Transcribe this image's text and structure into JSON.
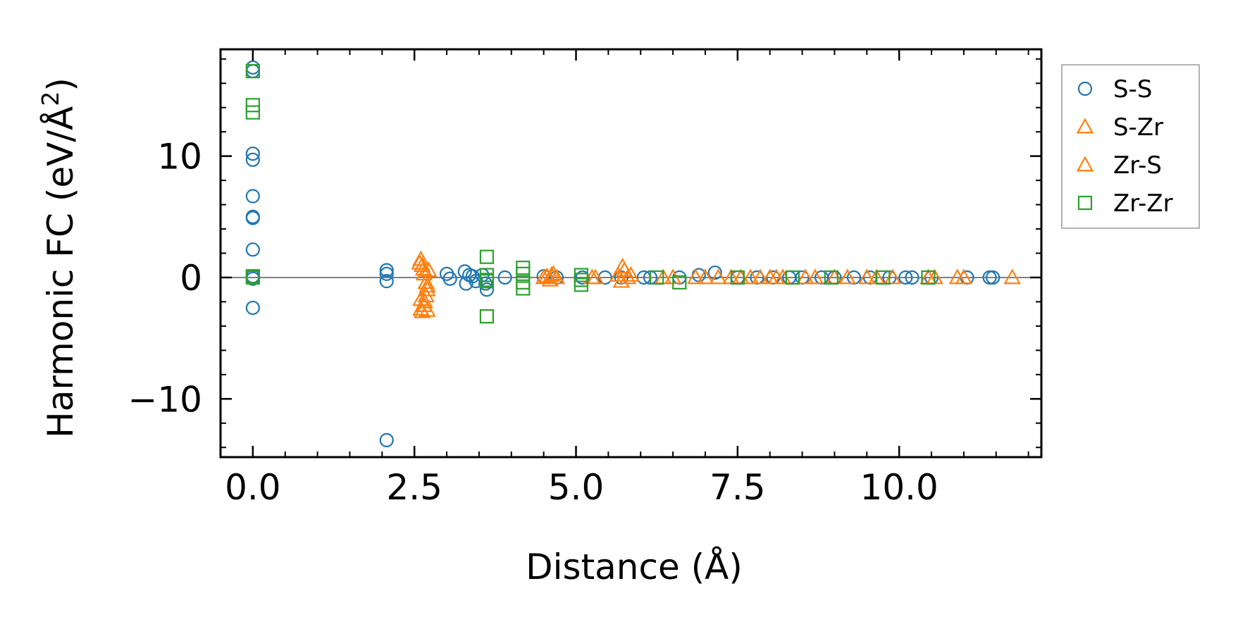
{
  "chart_data": {
    "type": "scatter",
    "title": "",
    "xlabel": "Distance (Å)",
    "ylabel_main": "Harmonic FC (eV/Å",
    "ylabel_sup": "2",
    "ylabel_close": ")",
    "xlim": [
      -0.5,
      12.2
    ],
    "ylim": [
      -14.8,
      18.8
    ],
    "xticks": [
      0.0,
      2.5,
      5.0,
      7.5,
      10.0
    ],
    "xtick_labels": [
      "0.0",
      "2.5",
      "5.0",
      "7.5",
      "10.0"
    ],
    "yticks": [
      -10,
      0,
      10
    ],
    "ytick_labels": [
      "−10",
      "0",
      "10"
    ],
    "zero_line": true,
    "legend_position": "outside-right-top",
    "series": [
      {
        "name": "S-S",
        "marker": "circle",
        "color": "#1f77b4",
        "x": [
          0.0,
          0.0,
          0.0,
          0.0,
          0.0,
          0.0,
          0.0,
          0.0,
          0.0,
          0.0,
          0.0,
          2.07,
          2.07,
          2.07,
          2.07,
          3.0,
          3.05,
          3.28,
          3.3,
          3.35,
          3.4,
          3.45,
          3.55,
          3.6,
          3.62,
          3.9,
          4.5,
          4.7,
          5.1,
          5.45,
          5.7,
          6.05,
          6.15,
          6.6,
          6.9,
          7.15,
          7.5,
          7.8,
          8.05,
          8.3,
          8.5,
          8.8,
          9.0,
          9.3,
          9.55,
          9.85,
          10.1,
          10.2,
          10.5,
          11.05,
          11.4,
          11.45
        ],
        "y": [
          17.3,
          17.0,
          10.2,
          9.7,
          6.7,
          5.0,
          4.9,
          2.3,
          0.1,
          -0.1,
          -2.5,
          0.6,
          0.3,
          -0.3,
          -13.4,
          0.3,
          -0.1,
          0.5,
          -0.5,
          0.2,
          0.1,
          -0.3,
          0.2,
          -0.5,
          -1.0,
          0.0,
          0.1,
          0.0,
          0.0,
          0.0,
          0.0,
          0.0,
          0.0,
          0.0,
          0.2,
          0.4,
          0.0,
          0.0,
          0.0,
          0.0,
          0.0,
          0.0,
          0.0,
          0.0,
          0.0,
          0.0,
          0.0,
          0.0,
          0.0,
          0.0,
          0.0,
          0.0
        ]
      },
      {
        "name": "S-Zr",
        "marker": "triangle",
        "color": "#ff7f0e",
        "x": [
          2.6,
          2.62,
          2.65,
          2.68,
          2.7,
          2.6,
          2.65,
          2.7,
          2.62,
          2.68,
          2.6,
          2.72,
          4.55,
          4.6,
          4.65,
          4.7,
          5.3,
          5.65,
          5.7,
          5.75,
          5.8,
          6.5,
          6.85,
          7.2,
          7.55,
          7.85,
          8.1,
          8.55,
          9.2,
          9.65,
          10.55,
          10.9
        ],
        "y": [
          1.5,
          1.0,
          0.3,
          -0.4,
          -1.0,
          -1.8,
          -2.3,
          -2.7,
          -2.8,
          -1.5,
          -2.6,
          0.6,
          0.1,
          -0.2,
          0.3,
          0.0,
          0.0,
          0.2,
          -0.3,
          0.6,
          0.0,
          0.0,
          0.0,
          0.0,
          0.0,
          0.0,
          0.0,
          0.0,
          0.0,
          0.0,
          0.0,
          0.0
        ]
      },
      {
        "name": "Zr-S",
        "marker": "triangle",
        "color": "#ff7f0e",
        "x": [
          2.58,
          2.64,
          2.7,
          2.66,
          4.5,
          4.62,
          5.25,
          5.72,
          5.85,
          6.35,
          7.0,
          7.4,
          7.7,
          8.0,
          8.2,
          8.7,
          9.0,
          9.5,
          9.9,
          10.45,
          11.0,
          11.75
        ],
        "y": [
          1.2,
          0.7,
          -0.7,
          -2.0,
          0.0,
          0.2,
          0.0,
          0.9,
          0.2,
          0.0,
          0.0,
          0.0,
          0.0,
          0.0,
          0.0,
          0.0,
          0.0,
          0.0,
          0.0,
          0.0,
          0.0,
          0.0
        ]
      },
      {
        "name": "Zr-Zr",
        "marker": "square",
        "color": "#2ca02c",
        "x": [
          0.0,
          0.0,
          0.0,
          0.0,
          0.0,
          3.62,
          3.62,
          3.62,
          3.62,
          3.62,
          4.18,
          4.18,
          4.18,
          4.18,
          5.08,
          5.08,
          5.08,
          6.25,
          6.6,
          7.5,
          8.35,
          8.95,
          9.75,
          10.45
        ],
        "y": [
          17.0,
          14.2,
          13.6,
          0.0,
          0.1,
          1.7,
          0.2,
          -0.2,
          -0.3,
          -3.2,
          0.8,
          0.3,
          -0.4,
          -0.9,
          0.2,
          -0.2,
          -0.6,
          0.0,
          -0.4,
          0.0,
          0.0,
          0.0,
          0.0,
          0.0
        ]
      }
    ]
  }
}
